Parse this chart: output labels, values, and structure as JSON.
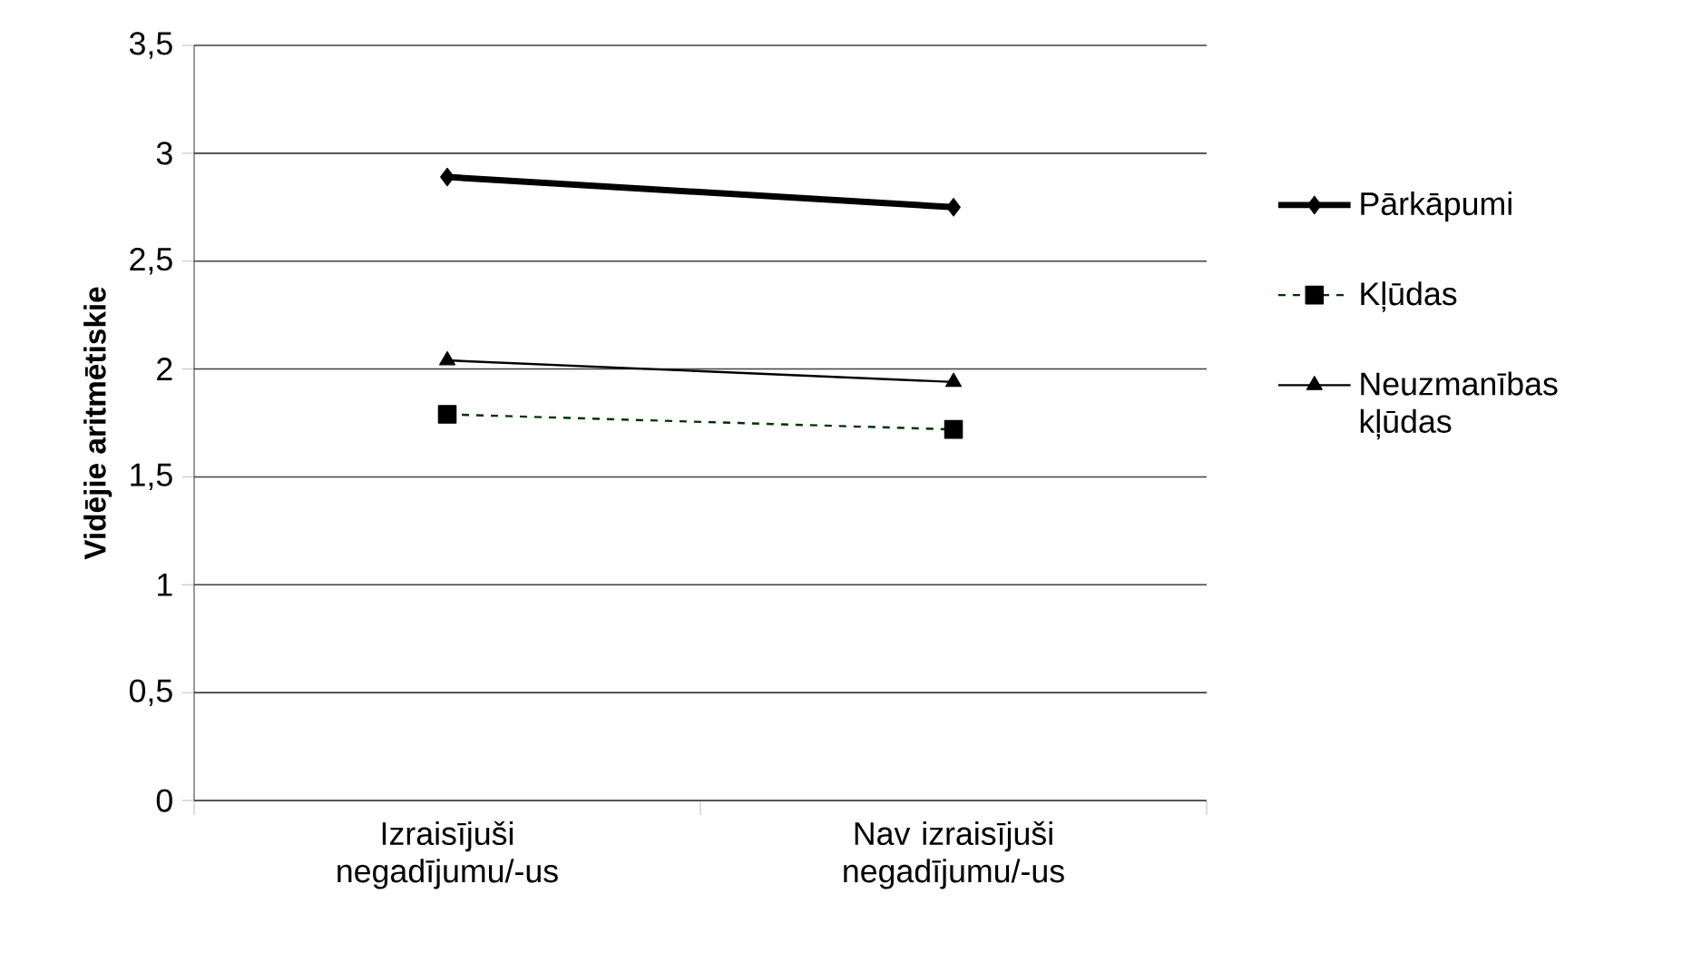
{
  "chart_data": {
    "type": "line",
    "ylabel": "Vidējie aritmētiskie",
    "categories": [
      "Izraisījuši negadījumu/-us",
      "Nav izraisījuši negadījumu/-us"
    ],
    "series": [
      {
        "name": "Pārkāpumi",
        "color": "#000000",
        "marker": "diamond",
        "line_style": "solid",
        "values": [
          2.89,
          2.75
        ]
      },
      {
        "name": "Kļūdas",
        "color": "#003300",
        "marker": "square",
        "line_style": "dashed",
        "values": [
          1.79,
          1.72
        ]
      },
      {
        "name": "Neuzmanības kļūdas",
        "color": "#000000",
        "marker": "triangle",
        "line_style": "solid",
        "values": [
          2.04,
          1.94
        ]
      }
    ],
    "ylim": [
      0,
      3.5
    ],
    "yticks": [
      0,
      {
        "value": 0.5,
        "label": "0,5"
      },
      1,
      {
        "value": 1.5,
        "label": "1,5"
      },
      2,
      {
        "value": 2.5,
        "label": "2,5"
      },
      3,
      {
        "value": 3.5,
        "label": "3,5"
      }
    ],
    "grid": "y",
    "legend": "right"
  }
}
